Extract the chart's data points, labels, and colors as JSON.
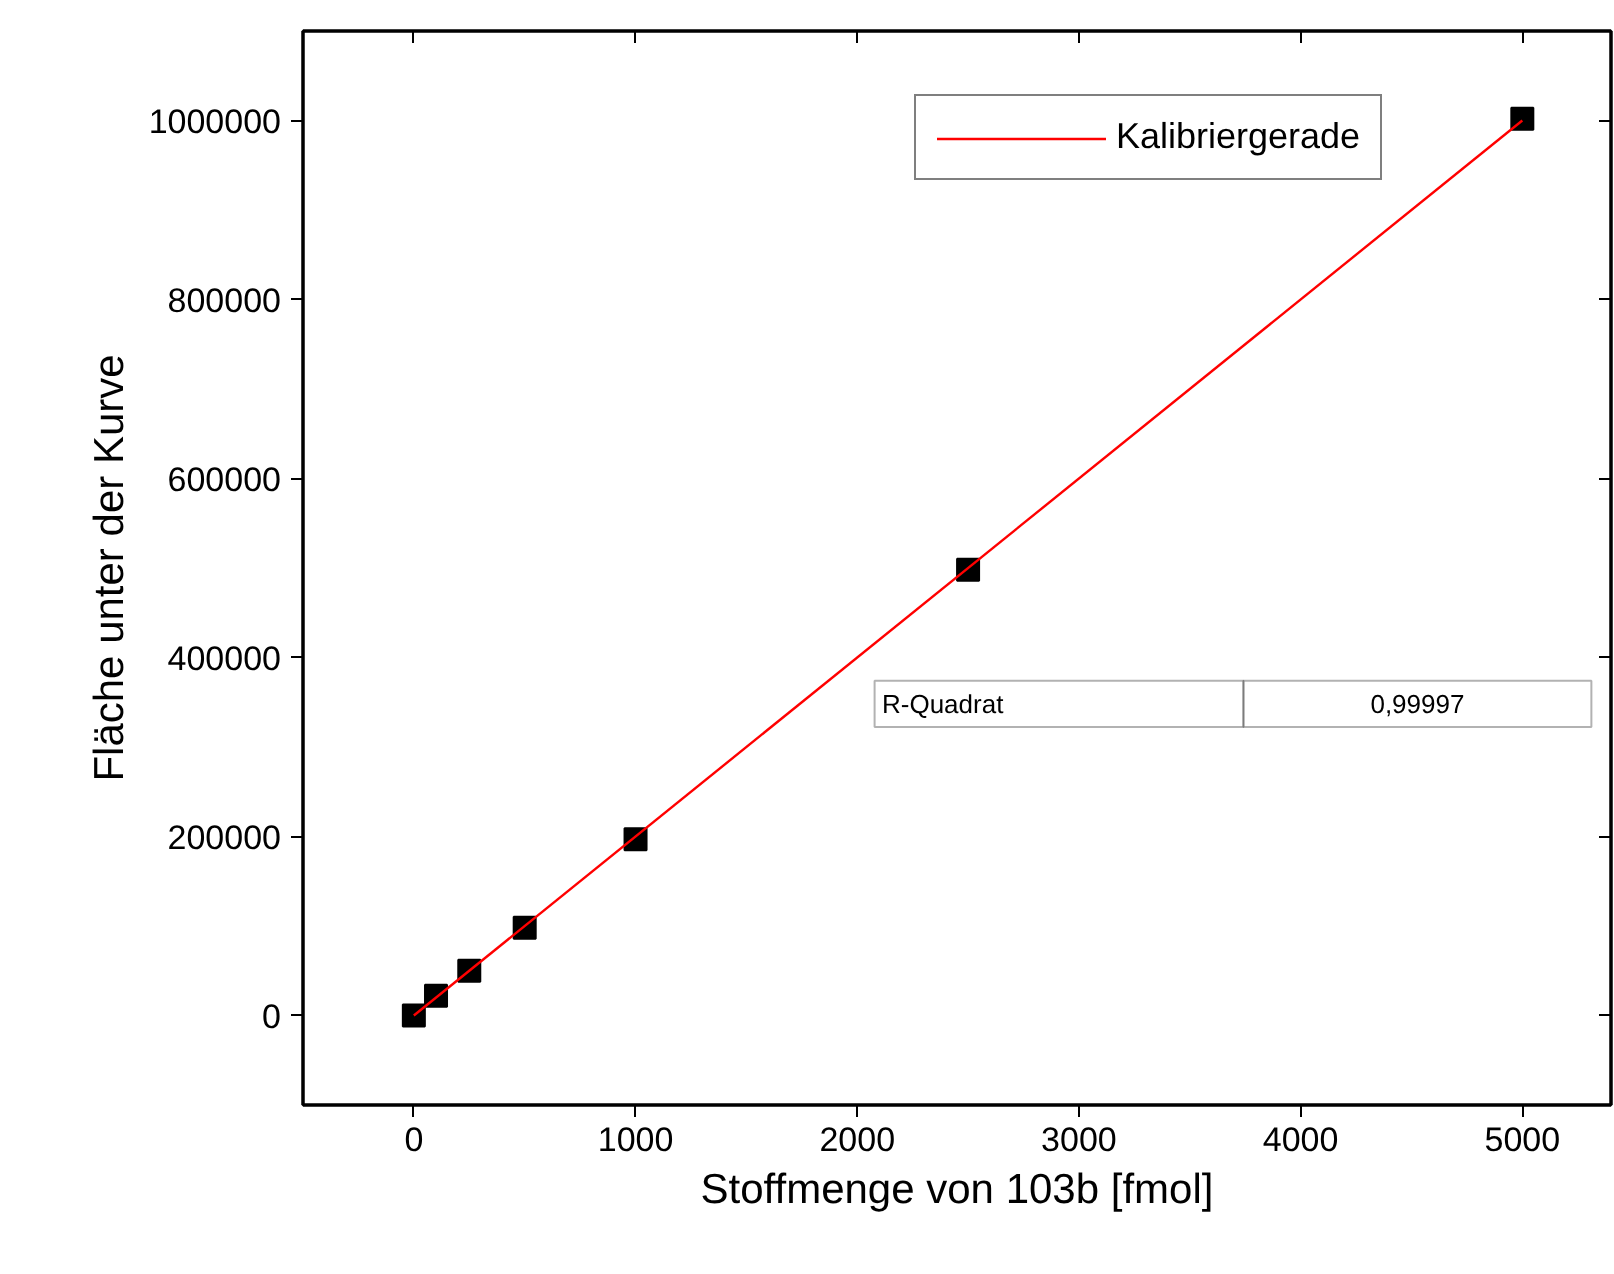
{
  "chart_data": {
    "type": "scatter",
    "xlabel": "Stoffmenge von 103b [fmol]",
    "ylabel": "Fläche unter der Kurve",
    "xlim": [
      -500,
      5400
    ],
    "ylim": [
      -100000,
      1100000
    ],
    "xticks": [
      0,
      1000,
      2000,
      3000,
      4000,
      5000
    ],
    "yticks": [
      0,
      200000,
      400000,
      600000,
      800000,
      1000000
    ],
    "grid": false,
    "legend": "top right",
    "series": [
      {
        "marker": "square",
        "color": "#000000",
        "x": [
          0,
          100,
          250,
          500,
          1000,
          2500,
          5000
        ],
        "values": [
          0,
          22000,
          50000,
          98000,
          197000,
          498000,
          1002000
        ]
      },
      {
        "type": "line",
        "name": "Kalibriergerade",
        "color": "#ff0000",
        "x": [
          0,
          5000
        ],
        "values": [
          0,
          1000000
        ],
        "line_style": "solid"
      }
    ],
    "annotations": [
      "R-Quadrat",
      "0,99997"
    ]
  }
}
